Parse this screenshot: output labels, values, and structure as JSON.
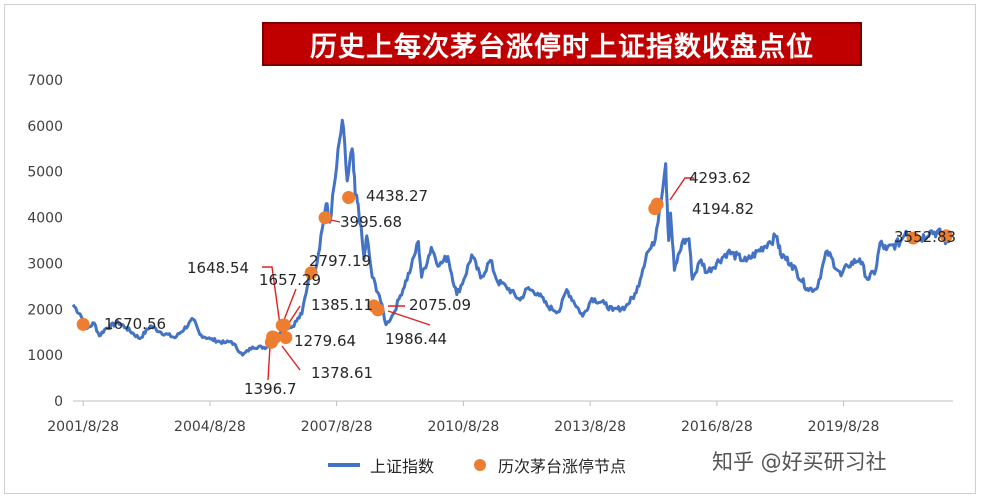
{
  "chart_data": {
    "type": "line",
    "title": "历史上每次茅台涨停时上证指数收盘点位",
    "xlabel": "",
    "ylabel": "",
    "ylim": [
      0,
      7000
    ],
    "yticks": [
      0,
      1000,
      2000,
      3000,
      4000,
      5000,
      6000,
      7000
    ],
    "xlim": [
      "2001-06-01",
      "2022-03-31"
    ],
    "xticks": [
      "2001/8/28",
      "2004/8/28",
      "2007/8/28",
      "2010/8/28",
      "2013/8/28",
      "2016/8/28",
      "2019/8/28"
    ],
    "grid": false,
    "legend_position": "bottom",
    "series": [
      {
        "name": "上证指数",
        "color": "#4472c4",
        "kind": "line",
        "points": [
          [
            "2001-06-01",
            2100
          ],
          [
            "2001-08-01",
            1900
          ],
          [
            "2001-10-01",
            1580
          ],
          [
            "2001-12-01",
            1700
          ],
          [
            "2002-01-15",
            1420
          ],
          [
            "2002-03-01",
            1560
          ],
          [
            "2002-06-25",
            1720
          ],
          [
            "2002-09-01",
            1600
          ],
          [
            "2002-12-31",
            1360
          ],
          [
            "2003-04-01",
            1640
          ],
          [
            "2003-07-01",
            1500
          ],
          [
            "2003-11-01",
            1380
          ],
          [
            "2004-04-07",
            1780
          ],
          [
            "2004-06-01",
            1450
          ],
          [
            "2004-09-01",
            1350
          ],
          [
            "2004-12-31",
            1270
          ],
          [
            "2005-03-01",
            1300
          ],
          [
            "2005-06-06",
            1000
          ],
          [
            "2005-09-01",
            1180
          ],
          [
            "2005-12-31",
            1170
          ],
          [
            "2006-03-01",
            1300
          ],
          [
            "2006-06-01",
            1650
          ],
          [
            "2006-08-01",
            1600
          ],
          [
            "2006-11-01",
            1900
          ],
          [
            "2006-12-31",
            2700
          ],
          [
            "2007-02-28",
            2880
          ],
          [
            "2007-05-30",
            4300
          ],
          [
            "2007-07-01",
            3900
          ],
          [
            "2007-08-28",
            5100
          ],
          [
            "2007-10-16",
            6124
          ],
          [
            "2007-11-28",
            4800
          ],
          [
            "2008-01-10",
            5500
          ],
          [
            "2008-02-05",
            4500
          ],
          [
            "2008-03-01",
            4300
          ],
          [
            "2008-04-22",
            3100
          ],
          [
            "2008-05-15",
            3600
          ],
          [
            "2008-07-01",
            2700
          ],
          [
            "2008-09-01",
            2300
          ],
          [
            "2008-10-28",
            1664
          ],
          [
            "2008-12-31",
            1900
          ],
          [
            "2009-03-01",
            2300
          ],
          [
            "2009-06-01",
            2900
          ],
          [
            "2009-08-04",
            3478
          ],
          [
            "2009-09-01",
            2700
          ],
          [
            "2009-11-24",
            3350
          ],
          [
            "2010-02-01",
            2950
          ],
          [
            "2010-04-15",
            3150
          ],
          [
            "2010-07-02",
            2320
          ],
          [
            "2010-09-01",
            2650
          ],
          [
            "2010-11-08",
            3186
          ],
          [
            "2011-01-25",
            2680
          ],
          [
            "2011-04-18",
            3067
          ],
          [
            "2011-06-20",
            2600
          ],
          [
            "2011-09-01",
            2500
          ],
          [
            "2011-12-31",
            2200
          ],
          [
            "2012-03-01",
            2450
          ],
          [
            "2012-06-01",
            2350
          ],
          [
            "2012-09-01",
            2050
          ],
          [
            "2012-12-04",
            1949
          ],
          [
            "2013-02-06",
            2430
          ],
          [
            "2013-06-25",
            1849
          ],
          [
            "2013-09-12",
            2240
          ],
          [
            "2013-12-31",
            2120
          ],
          [
            "2014-03-12",
            1974
          ],
          [
            "2014-06-30",
            2050
          ],
          [
            "2014-09-30",
            2360
          ],
          [
            "2014-12-31",
            3230
          ],
          [
            "2015-03-01",
            3400
          ],
          [
            "2015-04-20",
            4200
          ],
          [
            "2015-06-12",
            5178
          ],
          [
            "2015-07-08",
            3500
          ],
          [
            "2015-07-24",
            4100
          ],
          [
            "2015-08-26",
            2850
          ],
          [
            "2015-11-01",
            3450
          ],
          [
            "2015-12-31",
            3540
          ],
          [
            "2016-01-28",
            2655
          ],
          [
            "2016-04-13",
            3080
          ],
          [
            "2016-06-01",
            2800
          ],
          [
            "2016-11-30",
            3250
          ],
          [
            "2017-05-10",
            3050
          ],
          [
            "2017-11-14",
            3450
          ],
          [
            "2018-01-29",
            3587
          ],
          [
            "2018-03-01",
            3200
          ],
          [
            "2018-06-01",
            3000
          ],
          [
            "2018-10-18",
            2450
          ],
          [
            "2019-01-04",
            2440
          ],
          [
            "2019-04-08",
            3270
          ],
          [
            "2019-08-06",
            2730
          ],
          [
            "2019-10-01",
            2950
          ],
          [
            "2020-01-14",
            3100
          ],
          [
            "2020-03-23",
            2650
          ],
          [
            "2020-06-01",
            2850
          ],
          [
            "2020-07-09",
            3450
          ],
          [
            "2020-09-01",
            3300
          ],
          [
            "2020-12-31",
            3473
          ],
          [
            "2021-02-18",
            3700
          ],
          [
            "2021-06-01",
            3500
          ],
          [
            "2021-09-14",
            3700
          ],
          [
            "2021-12-31",
            3640
          ],
          [
            "2022-02-01",
            3460
          ],
          [
            "2022-03-01",
            3550
          ]
        ]
      },
      {
        "name": "历次茅台涨停节点",
        "color": "#ed7d31",
        "kind": "scatter",
        "points": [
          [
            "2001-08-28",
            1670.56
          ],
          [
            "2006-02-10",
            1279.64
          ],
          [
            "2006-02-20",
            1396.7
          ],
          [
            "2006-03-10",
            1378.61
          ],
          [
            "2006-05-15",
            1648.54
          ],
          [
            "2006-06-01",
            1657.29
          ],
          [
            "2006-06-15",
            1385.11
          ],
          [
            "2007-01-20",
            2797.19
          ],
          [
            "2007-05-20",
            3995.68
          ],
          [
            "2007-12-10",
            4438.27
          ],
          [
            "2008-07-15",
            2075.09
          ],
          [
            "2008-08-20",
            1986.44
          ],
          [
            "2015-03-10",
            4194.82
          ],
          [
            "2015-03-30",
            4293.62
          ],
          [
            "2021-04-20",
            3552.83
          ],
          [
            "2022-02-01",
            3600.0
          ]
        ]
      }
    ],
    "point_labels": [
      {
        "label": "1670.56"
      },
      {
        "label": "1648.54"
      },
      {
        "label": "1657.29"
      },
      {
        "label": "1385.11"
      },
      {
        "label": "1279.64"
      },
      {
        "label": "1378.61"
      },
      {
        "label": "1396.7"
      },
      {
        "label": "2797.19"
      },
      {
        "label": "3995.68"
      },
      {
        "label": "4438.27"
      },
      {
        "label": "2075.09"
      },
      {
        "label": "1986.44"
      },
      {
        "label": "4293.62"
      },
      {
        "label": "4194.82"
      },
      {
        "label": "3552.83"
      }
    ]
  },
  "legend": {
    "line_label": "上证指数",
    "dot_label": "历次茅台涨停节点"
  },
  "watermark": "知乎 @好买研习社"
}
